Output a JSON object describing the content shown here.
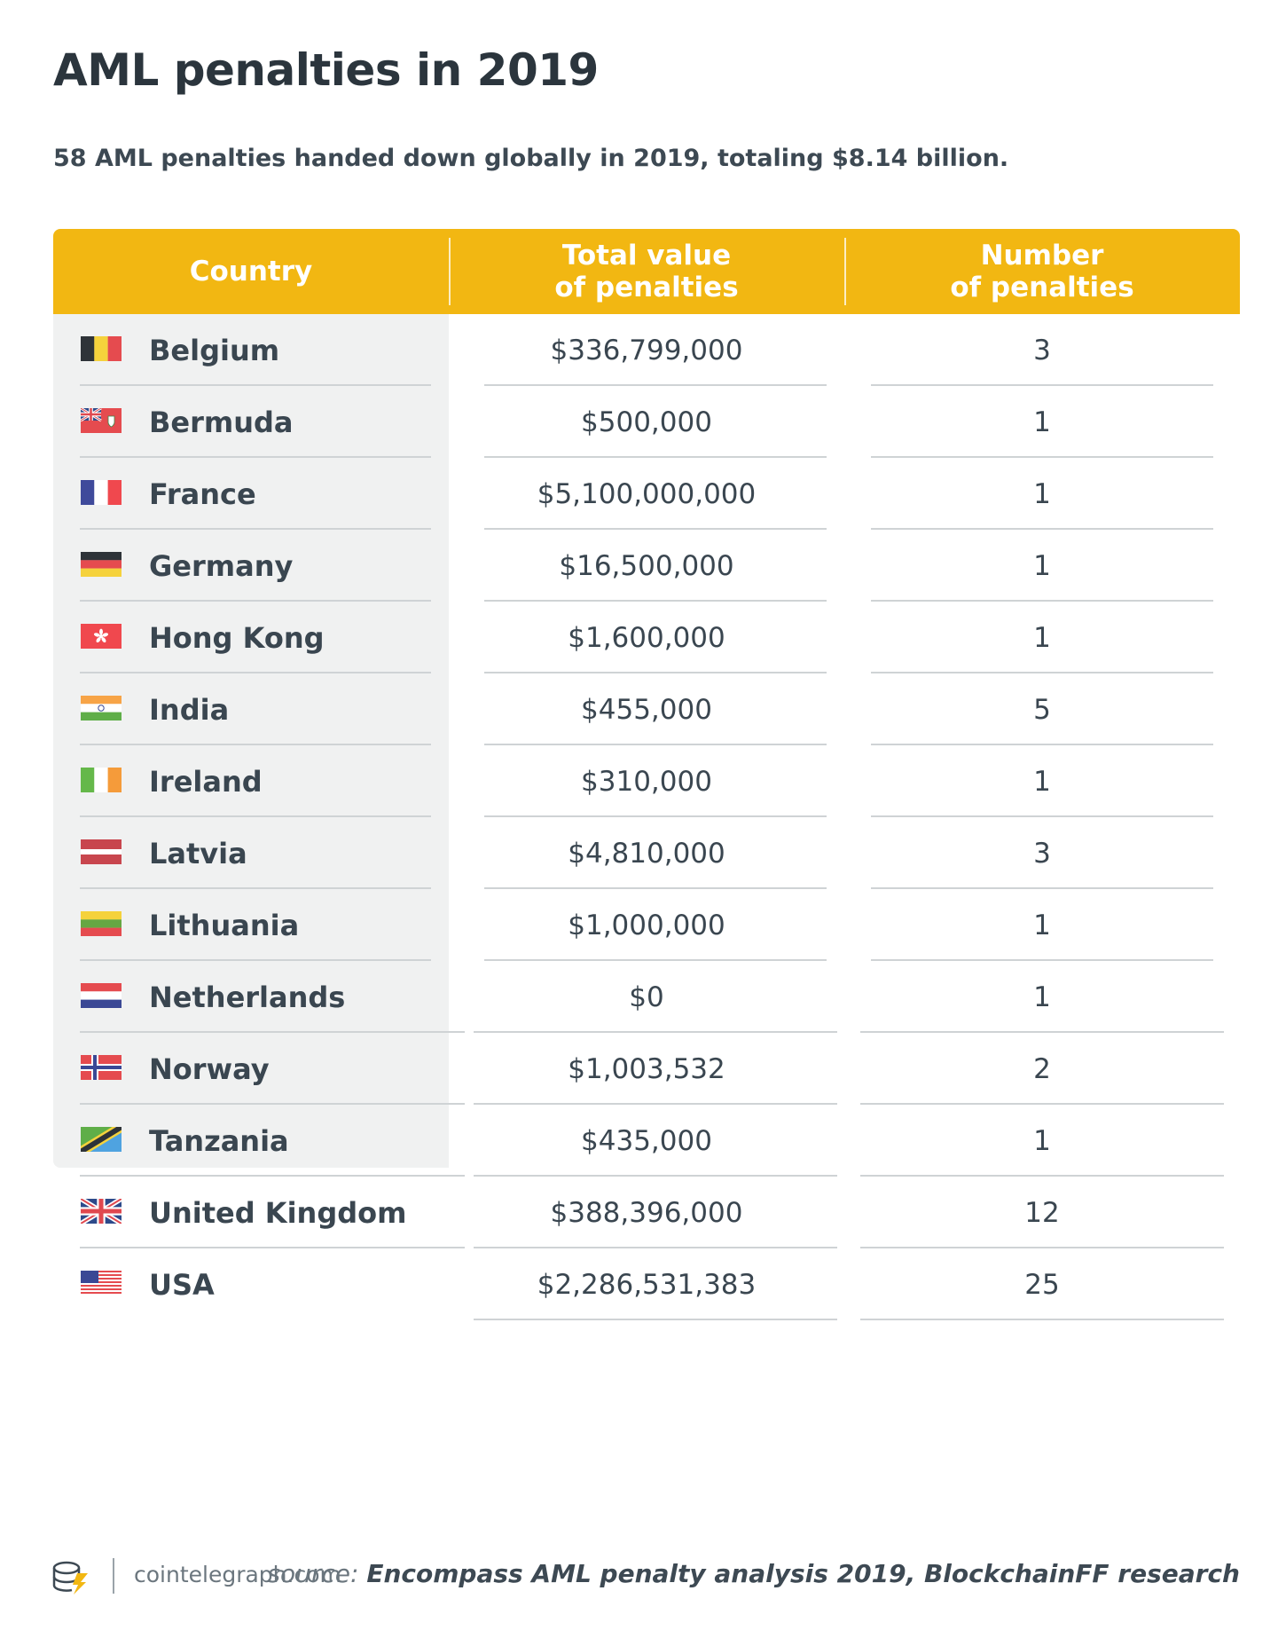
{
  "title": "AML penalties in 2019",
  "subtitle": "58 AML penalties handed down globally in 2019, totaling $8.14 billion.",
  "header": {
    "country": "Country",
    "value_line1": "Total value",
    "value_line2": "of penalties",
    "number_line1": "Number",
    "number_line2": "of penalties"
  },
  "colors": {
    "header_bg": "#f2b712",
    "country_col_bg": "#f0f1f1",
    "text": "#3a4650"
  },
  "rows": [
    {
      "country": "Belgium",
      "value": "$336,799,000",
      "number": "3",
      "flag": "flag-belgium-icon"
    },
    {
      "country": "Bermuda",
      "value": "$500,000",
      "number": "1",
      "flag": "flag-bermuda-icon"
    },
    {
      "country": "France",
      "value": "$5,100,000,000",
      "number": "1",
      "flag": "flag-france-icon"
    },
    {
      "country": "Germany",
      "value": "$16,500,000",
      "number": "1",
      "flag": "flag-germany-icon"
    },
    {
      "country": "Hong Kong",
      "value": "$1,600,000",
      "number": "1",
      "flag": "flag-hong-kong-icon"
    },
    {
      "country": "India",
      "value": "$455,000",
      "number": "5",
      "flag": "flag-india-icon"
    },
    {
      "country": "Ireland",
      "value": "$310,000",
      "number": "1",
      "flag": "flag-ireland-icon"
    },
    {
      "country": "Latvia",
      "value": "$4,810,000",
      "number": "3",
      "flag": "flag-latvia-icon"
    },
    {
      "country": "Lithuania",
      "value": "$1,000,000",
      "number": "1",
      "flag": "flag-lithuania-icon"
    },
    {
      "country": "Netherlands",
      "value": "$0",
      "number": "1",
      "flag": "flag-netherlands-icon"
    },
    {
      "country": "Norway",
      "value": "$1,003,532",
      "number": "2",
      "flag": "flag-norway-icon"
    },
    {
      "country": "Tanzania",
      "value": "$435,000",
      "number": "1",
      "flag": "flag-tanzania-icon"
    },
    {
      "country": "United Kingdom",
      "value": "$388,396,000",
      "number": "12",
      "flag": "flag-uk-icon"
    },
    {
      "country": "USA",
      "value": "$2,286,531,383",
      "number": "25",
      "flag": "flag-usa-icon"
    }
  ],
  "footer": {
    "site": "cointelegraph.com",
    "source_label": "source:",
    "source_text": "Encompass AML penalty analysis 2019, BlockchainFF research",
    "logo": "cointelegraph-logo-icon"
  }
}
